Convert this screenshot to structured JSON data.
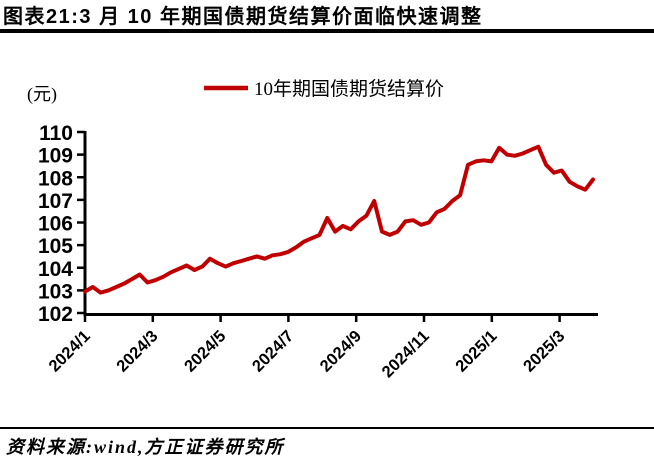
{
  "header": {
    "title": "图表21:3 月 10 年期国债期货结算价面临快速调整"
  },
  "footer": {
    "source": "资料来源:wind,方正证券研究所"
  },
  "chart_data": {
    "type": "line",
    "title": "图表21:3 月 10 年期国债期货结算价面临快速调整",
    "unit_label": "(元)",
    "legend": [
      "10年期国债期货结算价"
    ],
    "legend_position": "top-center",
    "line_color": "#C00000",
    "axis_color": "#000000",
    "grid": false,
    "ylim": [
      102,
      110
    ],
    "y_ticks": [
      102,
      103,
      104,
      105,
      106,
      107,
      108,
      109,
      110
    ],
    "x_tick_labels": [
      "2024/1",
      "2024/3",
      "2024/5",
      "2024/7",
      "2024/9",
      "2024/11",
      "2025/1",
      "2025/3"
    ],
    "x_frequency": "weekly",
    "x_range": "2024/1 to 2025/4",
    "values": [
      102.95,
      103.15,
      102.9,
      103.0,
      103.15,
      103.3,
      103.5,
      103.7,
      103.35,
      103.45,
      103.6,
      103.8,
      103.95,
      104.1,
      103.9,
      104.05,
      104.4,
      104.2,
      104.05,
      104.2,
      104.3,
      104.4,
      104.5,
      104.4,
      104.55,
      104.6,
      104.7,
      104.9,
      105.15,
      105.3,
      105.45,
      106.2,
      105.6,
      105.85,
      105.7,
      106.05,
      106.3,
      106.95,
      105.6,
      105.45,
      105.6,
      106.05,
      106.1,
      105.9,
      106.0,
      106.45,
      106.6,
      106.95,
      107.2,
      108.55,
      108.7,
      108.75,
      108.7,
      109.3,
      109.0,
      108.95,
      109.05,
      109.2,
      109.35,
      108.55,
      108.2,
      108.3,
      107.8,
      107.6,
      107.45,
      107.9
    ]
  }
}
